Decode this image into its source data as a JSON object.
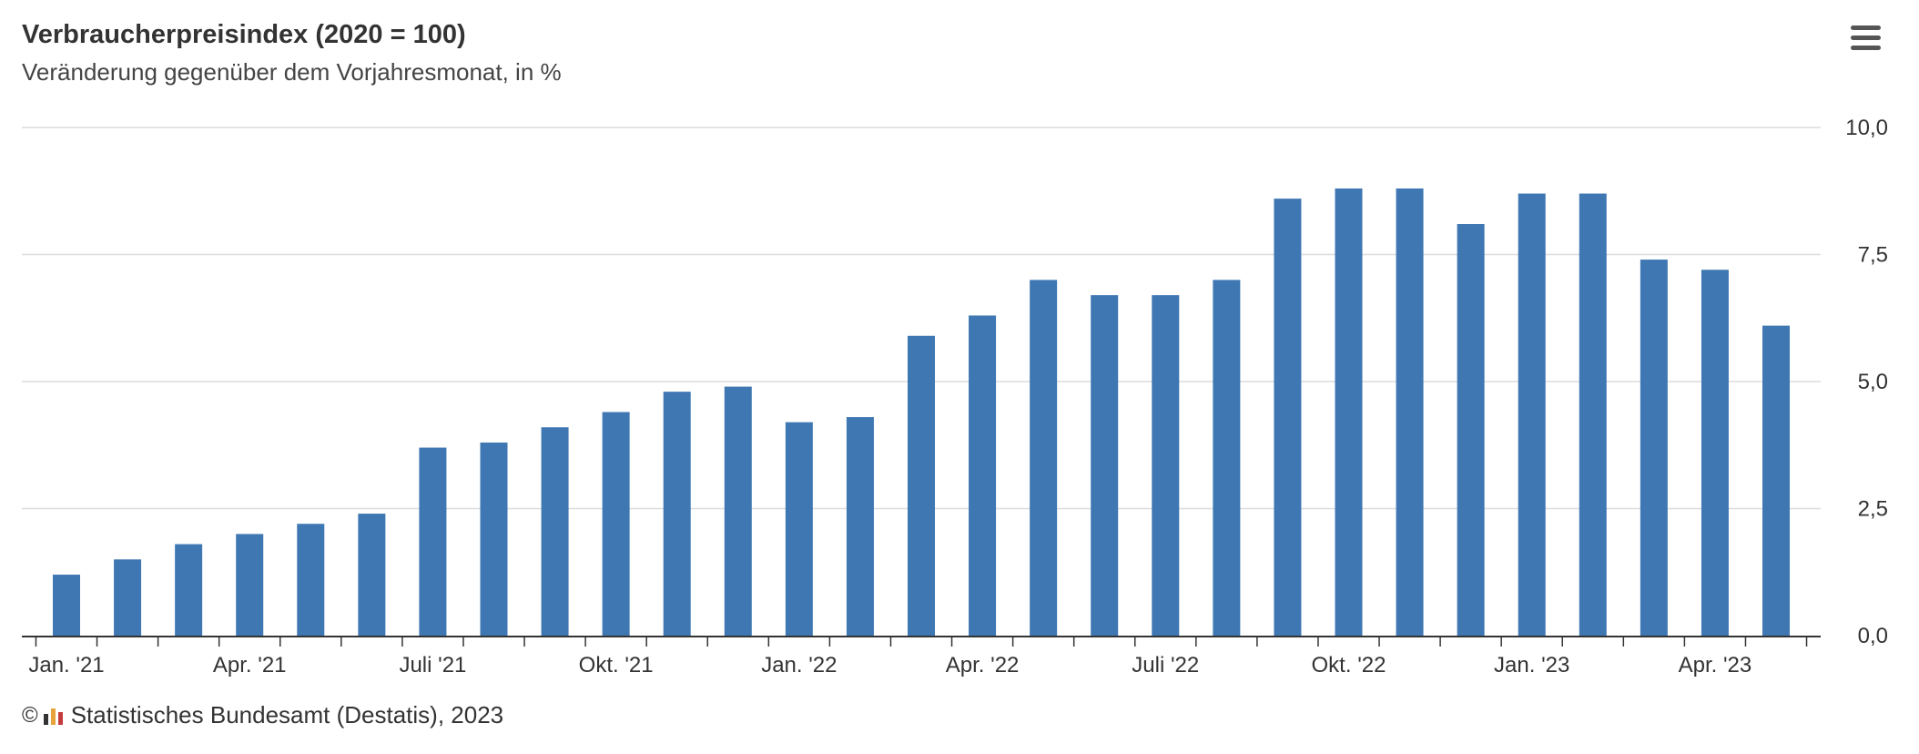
{
  "header": {
    "title": "Verbraucherpreisindex (2020 = 100)",
    "subtitle": "Veränderung gegenüber dem Vorjahresmonat, in %"
  },
  "menu": {
    "icon": "hamburger-menu-icon"
  },
  "footer": {
    "copyright_symbol": "©",
    "logo_icon": "destatis-logo-icon",
    "source": "Statistisches Bundesamt (Destatis), 2023"
  },
  "colors": {
    "bar": "#3f77b3",
    "grid": "#dcdcdc",
    "axis": "#333333",
    "logo": [
      "#333333",
      "#e8a33c",
      "#c43b3b"
    ]
  },
  "chart_data": {
    "type": "bar",
    "title": "Verbraucherpreisindex (2020 = 100)",
    "subtitle": "Veränderung gegenüber dem Vorjahresmonat, in %",
    "categories": [
      "Jan. '21",
      "Feb. '21",
      "Mär. '21",
      "Apr. '21",
      "Mai '21",
      "Juni '21",
      "Juli '21",
      "Aug. '21",
      "Sep. '21",
      "Okt. '21",
      "Nov. '21",
      "Dez. '21",
      "Jan. '22",
      "Feb. '22",
      "Mär. '22",
      "Apr. '22",
      "Mai '22",
      "Juni '22",
      "Juli '22",
      "Aug. '22",
      "Sep. '22",
      "Okt. '22",
      "Nov. '22",
      "Dez. '22",
      "Jan. '23",
      "Feb. '23",
      "Mär. '23",
      "Apr. '23",
      "Mai '23"
    ],
    "values": [
      1.2,
      1.5,
      1.8,
      2.0,
      2.2,
      2.4,
      3.7,
      3.8,
      4.1,
      4.4,
      4.8,
      4.9,
      4.2,
      4.3,
      5.9,
      6.3,
      7.0,
      6.7,
      6.7,
      7.0,
      8.6,
      8.8,
      8.8,
      8.1,
      8.7,
      8.7,
      7.4,
      7.2,
      6.1
    ],
    "x_tick_labels": [
      {
        "index": 0,
        "label": "Jan. '21"
      },
      {
        "index": 3,
        "label": "Apr. '21"
      },
      {
        "index": 6,
        "label": "Juli '21"
      },
      {
        "index": 9,
        "label": "Okt. '21"
      },
      {
        "index": 12,
        "label": "Jan. '22"
      },
      {
        "index": 15,
        "label": "Apr. '22"
      },
      {
        "index": 18,
        "label": "Juli '22"
      },
      {
        "index": 21,
        "label": "Okt. '22"
      },
      {
        "index": 24,
        "label": "Jan. '23"
      },
      {
        "index": 27,
        "label": "Apr. '23"
      }
    ],
    "y_ticks": [
      {
        "value": 0,
        "label": "0,0"
      },
      {
        "value": 2.5,
        "label": "2,5"
      },
      {
        "value": 5,
        "label": "5,0"
      },
      {
        "value": 7.5,
        "label": "7,5"
      },
      {
        "value": 10,
        "label": "10,0"
      }
    ],
    "ylim": [
      0,
      10
    ],
    "y_axis_side": "right",
    "grid": true,
    "legend": false
  }
}
